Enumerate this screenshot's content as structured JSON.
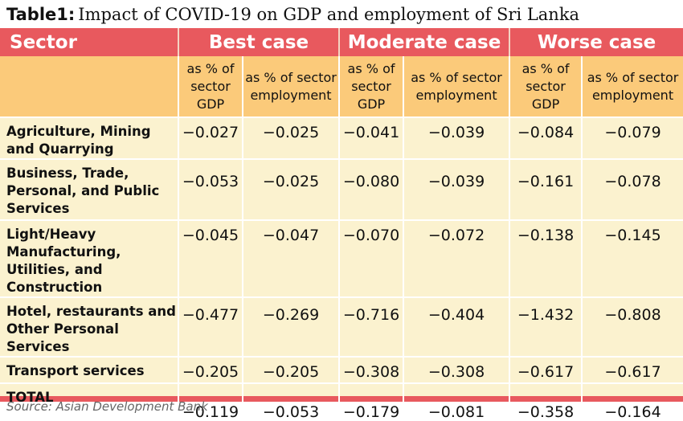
{
  "title": {
    "lead": "Table1:",
    "rest": "Impact of COVID-19 on GDP and employment of Sri Lanka"
  },
  "header": {
    "sector": "Sector",
    "groups": [
      "Best case",
      "Moderate case",
      "Worse case"
    ],
    "sub": [
      "as % of sector GDP",
      "as % of sector employment"
    ]
  },
  "rows": [
    {
      "sector": "Agriculture, Mining and Quarrying",
      "values": [
        "−0.027",
        "−0.025",
        "−0.041",
        "−0.039",
        "−0.084",
        "−0.079"
      ]
    },
    {
      "sector": "Business, Trade, Personal, and Public Services",
      "values": [
        "−0.053",
        "−0.025",
        "−0.080",
        "−0.039",
        "−0.161",
        "−0.078"
      ]
    },
    {
      "sector": "Light/Heavy Manufacturing, Utilities, and Construction",
      "values": [
        "−0.045",
        "−0.047",
        "−0.070",
        "−0.072",
        "−0.138",
        "−0.145"
      ]
    },
    {
      "sector": "Hotel, restaurants and Other Personal Services",
      "values": [
        "−0.477",
        "−0.269",
        "−0.716",
        "−0.404",
        "−1.432",
        "−0.808"
      ]
    },
    {
      "sector": "Transport services",
      "values": [
        "−0.205",
        "−0.205",
        "−0.308",
        "−0.308",
        "−0.617",
        "−0.617"
      ]
    },
    {
      "sector": "TOTAL",
      "values": [
        "−0.119",
        "−0.053",
        "−0.179",
        "−0.081",
        "−0.358",
        "−0.164"
      ]
    }
  ],
  "source": "Source: Asian Development Bank"
}
